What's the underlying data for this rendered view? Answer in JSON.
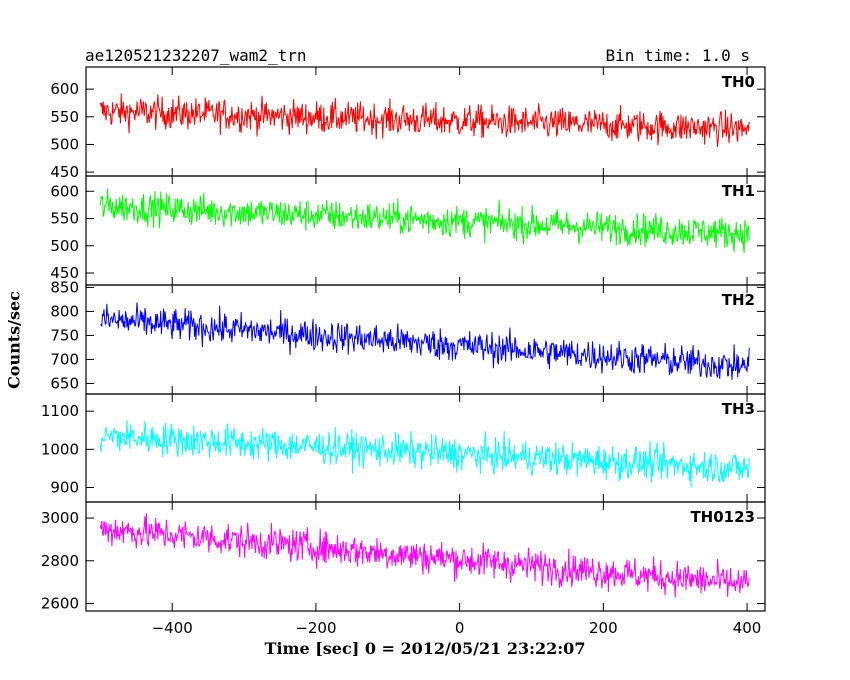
{
  "header": {
    "title": "ae120521232207_wam2_trn",
    "bin_time": "Bin time: 1.0 s"
  },
  "axes": {
    "xlabel": "Time [sec] 0 = 2012/05/21 23:22:07",
    "ylabel": "Counts/sec"
  },
  "chart_data": {
    "type": "line",
    "x_range": [
      -500,
      403
    ],
    "xlim": [
      -520,
      425
    ],
    "x_ticks": [
      -400,
      -200,
      0,
      200,
      400
    ],
    "bin_time_s": 1.0,
    "panels": [
      {
        "name": "TH0",
        "color": "#ff0000",
        "ylim": [
          443,
          640
        ],
        "y_ticks": [
          450,
          500,
          550,
          600
        ],
        "mean_start": 560,
        "mean_end": 528,
        "noise_amplitude": 28
      },
      {
        "name": "TH1",
        "color": "#00ff00",
        "ylim": [
          428,
          628
        ],
        "y_ticks": [
          450,
          500,
          550,
          600
        ],
        "mean_start": 573,
        "mean_end": 522,
        "noise_amplitude": 28
      },
      {
        "name": "TH2",
        "color": "#0000ff",
        "ylim": [
          628,
          855
        ],
        "y_ticks": [
          650,
          700,
          750,
          800,
          850
        ],
        "mean_start": 783,
        "mean_end": 685,
        "noise_amplitude": 32
      },
      {
        "name": "TH3",
        "color": "#00ffff",
        "ylim": [
          862,
          1145
        ],
        "y_ticks": [
          900,
          1000,
          1100
        ],
        "mean_start": 1035,
        "mean_end": 950,
        "noise_amplitude": 42
      },
      {
        "name": "TH0123",
        "color": "#ff00ff",
        "ylim": [
          2565,
          3075
        ],
        "y_ticks": [
          2600,
          2800,
          3000
        ],
        "mean_start": 2950,
        "mean_end": 2690,
        "noise_amplitude": 75
      }
    ]
  }
}
